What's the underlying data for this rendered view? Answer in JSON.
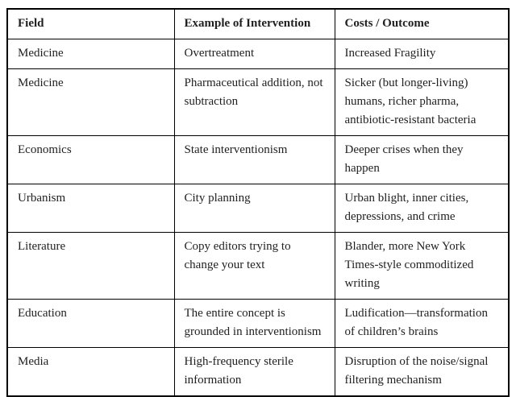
{
  "table": {
    "columns": [
      "Field",
      "Example of Intervention",
      "Costs / Outcome"
    ],
    "rows": [
      {
        "field": "Medicine",
        "intervention": "Overtreatment",
        "outcome": "Increased Fragility"
      },
      {
        "field": "Medicine",
        "intervention": "Pharmaceutical addition, not subtraction",
        "outcome": "Sicker (but longer-living) humans, richer pharma, antibiotic-resistant bacteria"
      },
      {
        "field": "Economics",
        "intervention": "State interventionism",
        "outcome": "Deeper crises when they happen"
      },
      {
        "field": "Urbanism",
        "intervention": "City planning",
        "outcome": "Urban blight, inner cities, depressions, and crime"
      },
      {
        "field": "Literature",
        "intervention": "Copy editors trying to change your text",
        "outcome": "Blander, more New York Times-style commoditized writing"
      },
      {
        "field": "Education",
        "intervention": "The entire concept is grounded in interventionism",
        "outcome": "Ludification—transformation of children’s brains"
      },
      {
        "field": "Media",
        "intervention": "High-frequency sterile information",
        "outcome": "Disruption of the noise/signal filtering mechanism"
      }
    ],
    "colors": {
      "border": "#000000",
      "text": "#1f1f1f",
      "background": "#ffffff"
    }
  }
}
